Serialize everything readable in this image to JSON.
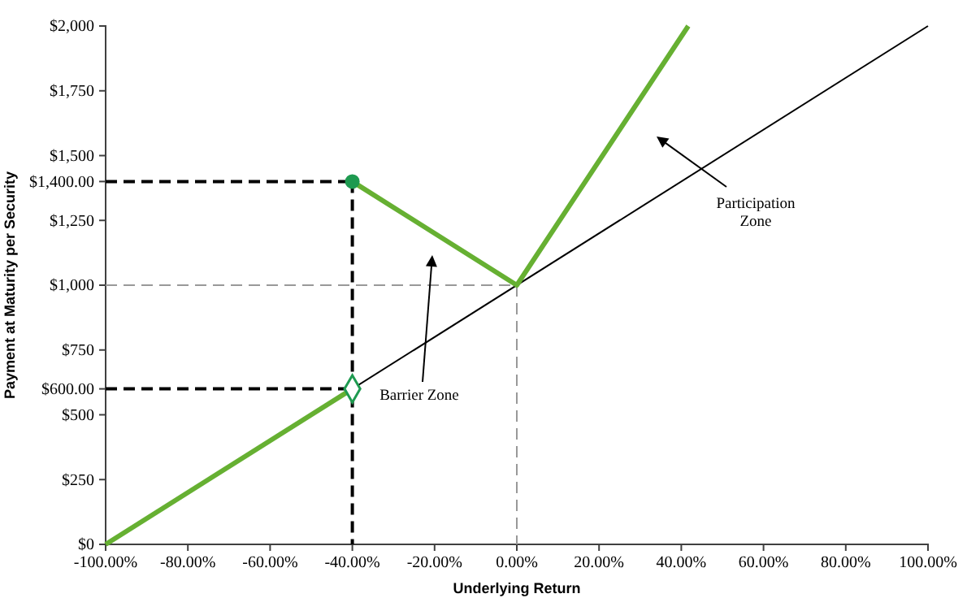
{
  "chart_data": {
    "type": "line",
    "xlabel": "Underlying Return",
    "ylabel": "Payment at Maturity per Security",
    "xlim": [
      -100,
      100
    ],
    "ylim": [
      0,
      2000
    ],
    "xticks": [
      {
        "value": -100,
        "label": "-100.00%"
      },
      {
        "value": -80,
        "label": "-80.00%"
      },
      {
        "value": -60,
        "label": "-60.00%"
      },
      {
        "value": -40,
        "label": "-40.00%"
      },
      {
        "value": -20,
        "label": "-20.00%"
      },
      {
        "value": 0,
        "label": "0.00%"
      },
      {
        "value": 20,
        "label": "20.00%"
      },
      {
        "value": 40,
        "label": "40.00%"
      },
      {
        "value": 60,
        "label": "60.00%"
      },
      {
        "value": 80,
        "label": "80.00%"
      },
      {
        "value": 100,
        "label": "100.00%"
      }
    ],
    "yticks": [
      {
        "value": 0,
        "label": "$0"
      },
      {
        "value": 250,
        "label": "$250"
      },
      {
        "value": 500,
        "label": "$500"
      },
      {
        "value": 600,
        "label": "$600.00"
      },
      {
        "value": 750,
        "label": "$750"
      },
      {
        "value": 1000,
        "label": "$1,000"
      },
      {
        "value": 1250,
        "label": "$1,250"
      },
      {
        "value": 1400,
        "label": "$1,400.00"
      },
      {
        "value": 1500,
        "label": "$1,500"
      },
      {
        "value": 1750,
        "label": "$1,750"
      },
      {
        "value": 2000,
        "label": "$2,000"
      }
    ],
    "series": [
      {
        "color": "#999999",
        "line_style": "dashed",
        "x": [
          -100,
          0
        ],
        "values": [
          1000,
          1000
        ]
      },
      {
        "color": "#999999",
        "line_style": "dashed",
        "x": [
          0,
          0
        ],
        "values": [
          1000,
          0
        ]
      },
      {
        "color": "#000000",
        "line_style": "dashed",
        "x": [
          -100,
          -40
        ],
        "values": [
          1400,
          1400
        ]
      },
      {
        "color": "#000000",
        "line_style": "dashed",
        "x": [
          -40,
          -40
        ],
        "values": [
          1400,
          0
        ]
      },
      {
        "color": "#000000",
        "line_style": "dashed",
        "x": [
          -100,
          -40
        ],
        "values": [
          600,
          600
        ]
      },
      {
        "color": "#000000",
        "line_style": "solid",
        "x": [
          -100,
          100
        ],
        "values": [
          0,
          2000
        ]
      },
      {
        "color": "#66b032",
        "line_style": "solid",
        "x": [
          -100,
          -40
        ],
        "values": [
          0,
          600
        ]
      },
      {
        "color": "#66b032",
        "line_style": "solid",
        "x": [
          -40,
          0,
          41.7
        ],
        "values": [
          1400,
          1000,
          2000
        ]
      },
      {
        "type": "scatter",
        "color": "#1e9a50",
        "marker": "circle",
        "x": [
          -40
        ],
        "values": [
          1400
        ]
      },
      {
        "type": "scatter",
        "color": "#1e9a50",
        "marker": "diamond",
        "x": [
          -40
        ],
        "values": [
          600
        ]
      }
    ],
    "annotations": [
      "Barrier Zone",
      "Participation Zone"
    ]
  }
}
